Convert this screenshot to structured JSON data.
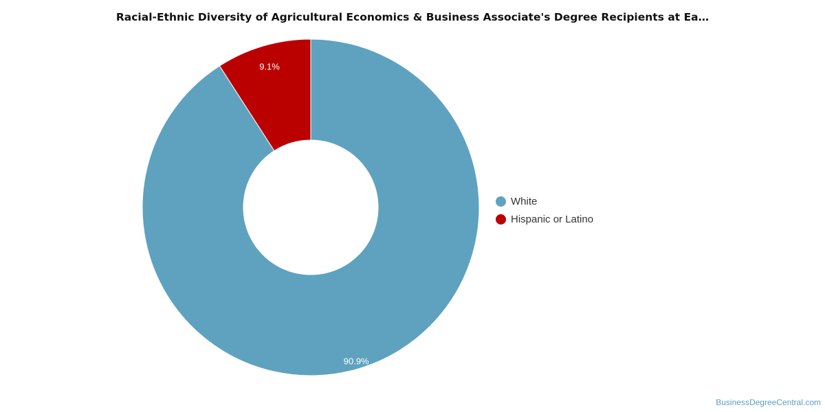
{
  "chart_data": {
    "type": "pie",
    "title": "Racial-Ethnic Diversity of Agricultural Economics & Business Associate's Degree Recipients at Ea…",
    "donut": true,
    "series": [
      {
        "name": "White",
        "value": 90.9,
        "label": "90.9%",
        "color": "#5ea2bf"
      },
      {
        "name": "Hispanic or Latino",
        "value": 9.1,
        "label": "9.1%",
        "color": "#bb0000"
      }
    ],
    "legend_position": "right"
  },
  "footer": {
    "credit": "BusinessDegreeCentral.com"
  }
}
